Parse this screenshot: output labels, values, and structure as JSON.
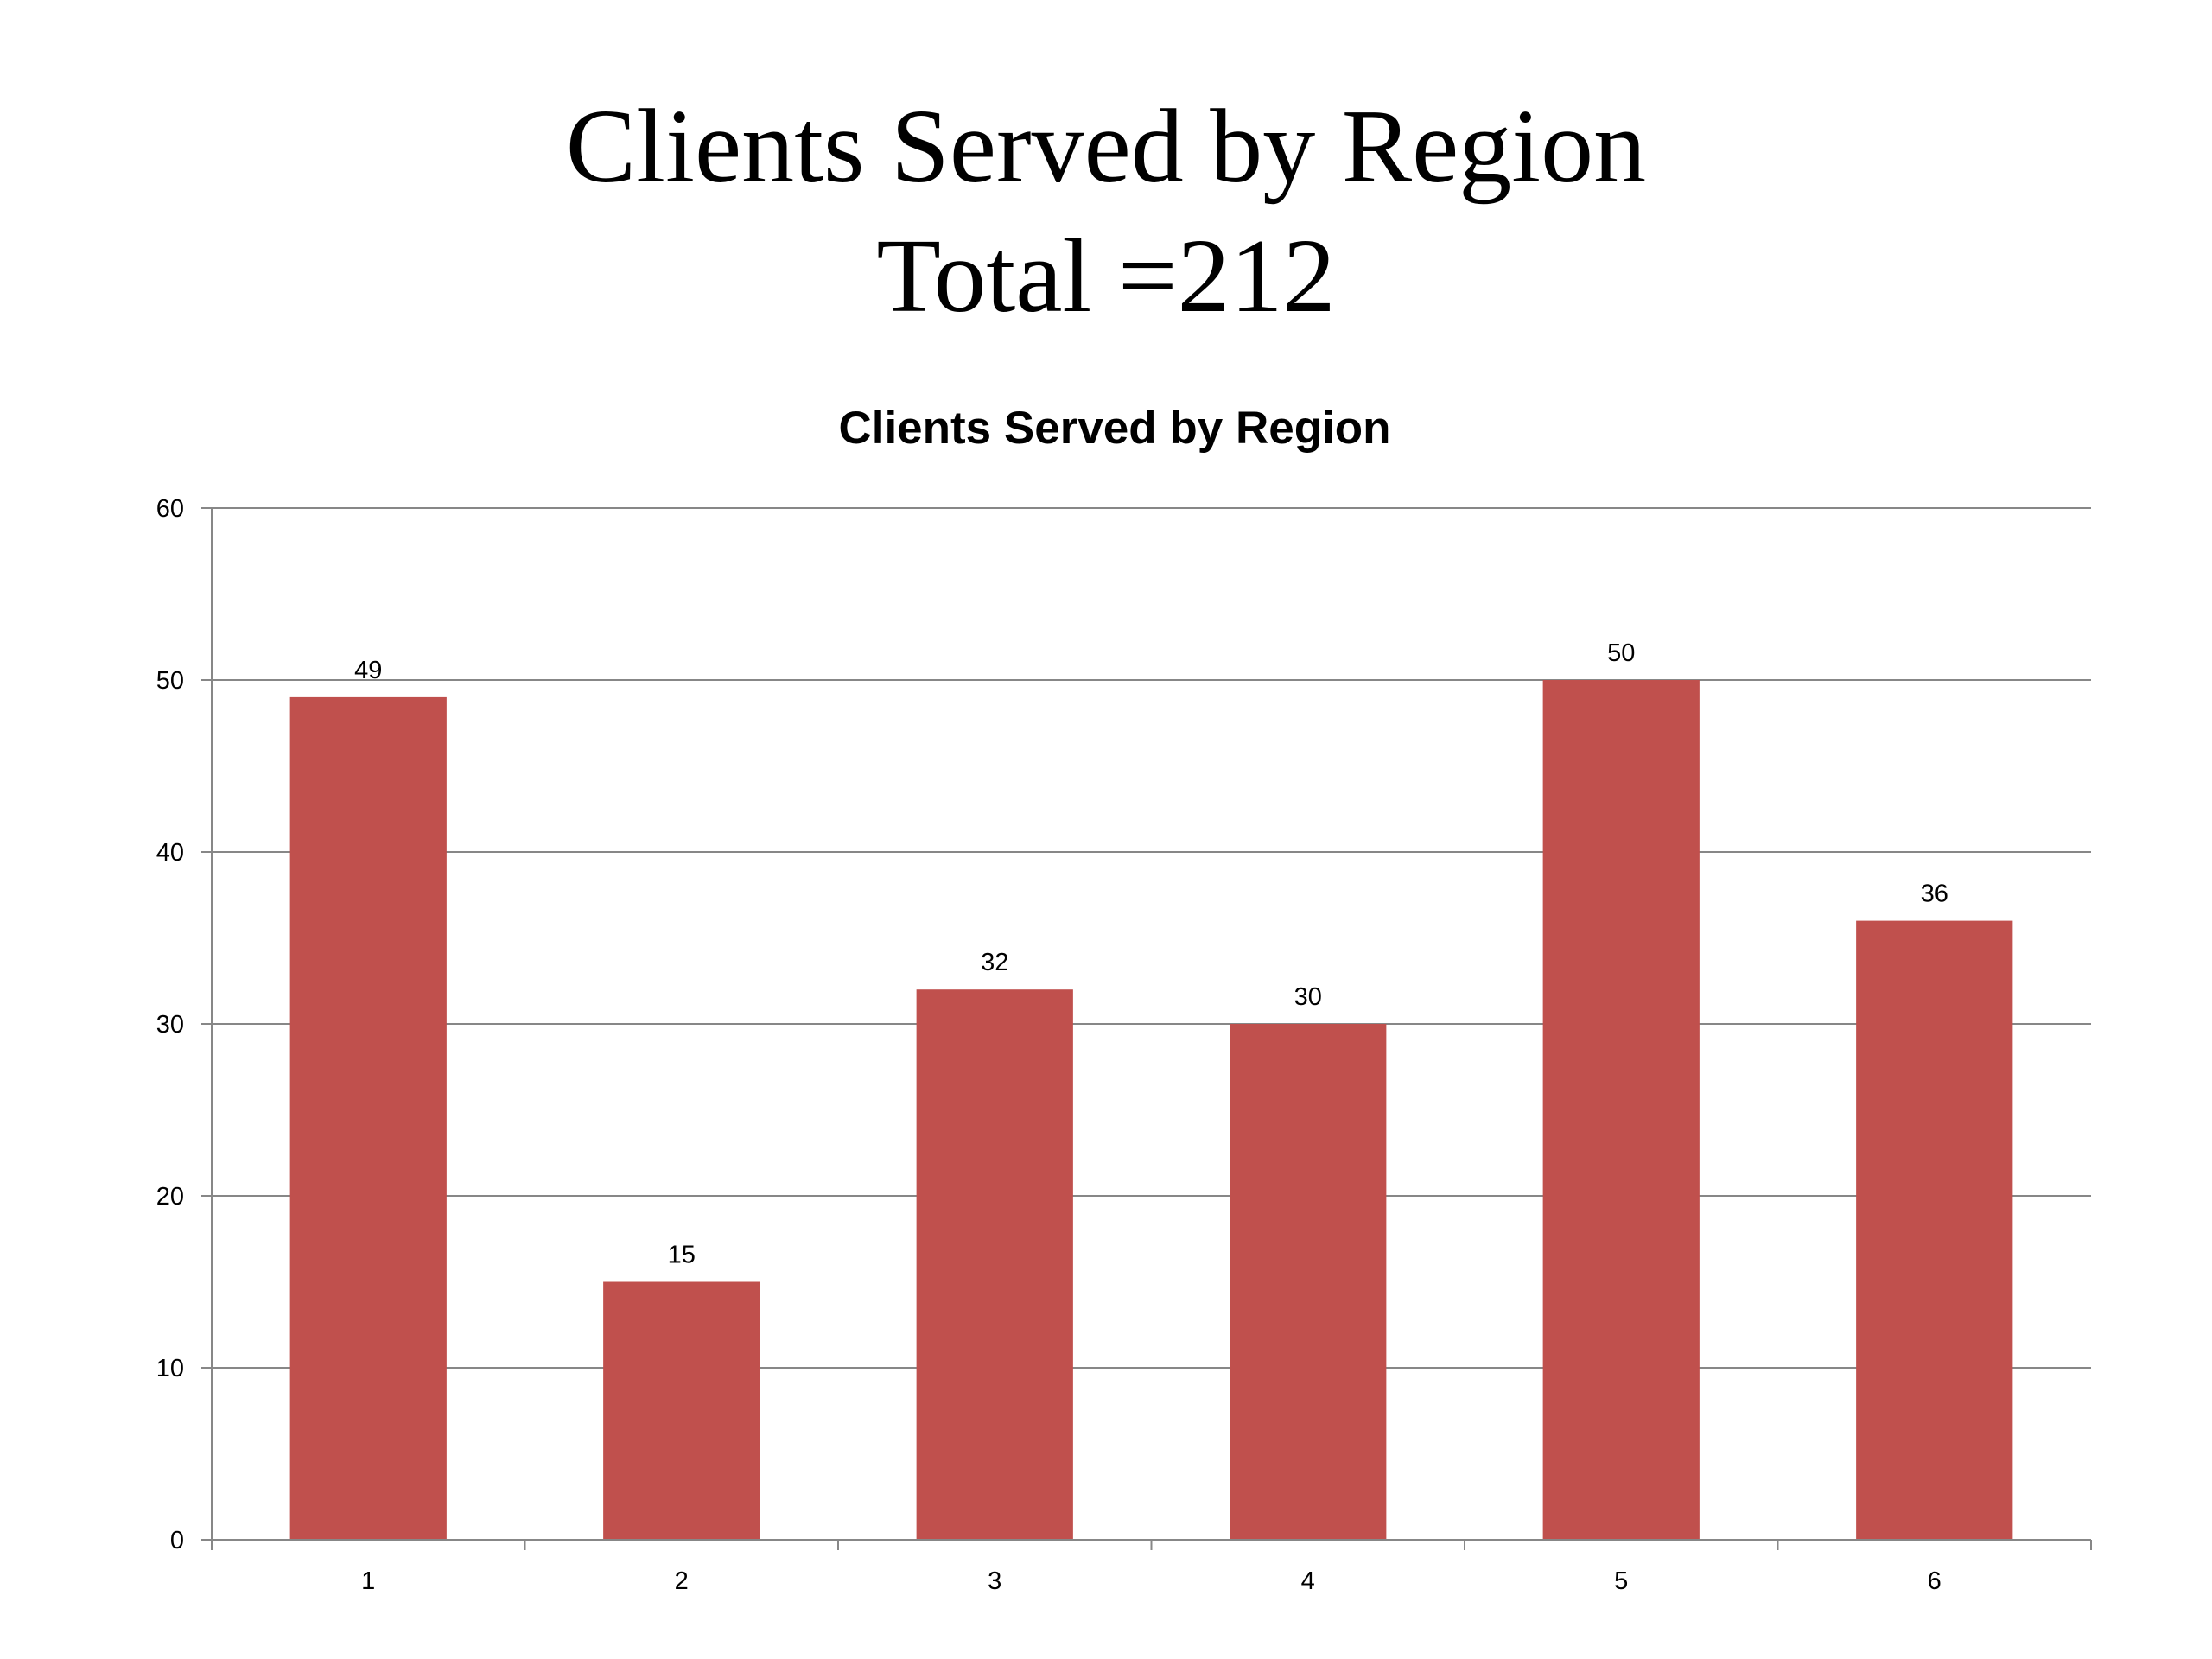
{
  "slide": {
    "title_line1": "Clients Served by Region",
    "title_line2": "Total =212"
  },
  "chart_data": {
    "type": "bar",
    "title": "Clients Served by Region",
    "categories": [
      "1",
      "2",
      "3",
      "4",
      "5",
      "6"
    ],
    "values": [
      49,
      15,
      32,
      30,
      50,
      36
    ],
    "data_labels": [
      "49",
      "15",
      "32",
      "30",
      "50",
      "36"
    ],
    "xlabel": "",
    "ylabel": "",
    "ylim": [
      0,
      60
    ],
    "yticks": [
      0,
      10,
      20,
      30,
      40,
      50,
      60
    ],
    "grid": true,
    "legend": "none",
    "bar_color": "#C0504D",
    "grid_color": "#878787",
    "axis_color": "#878787"
  }
}
